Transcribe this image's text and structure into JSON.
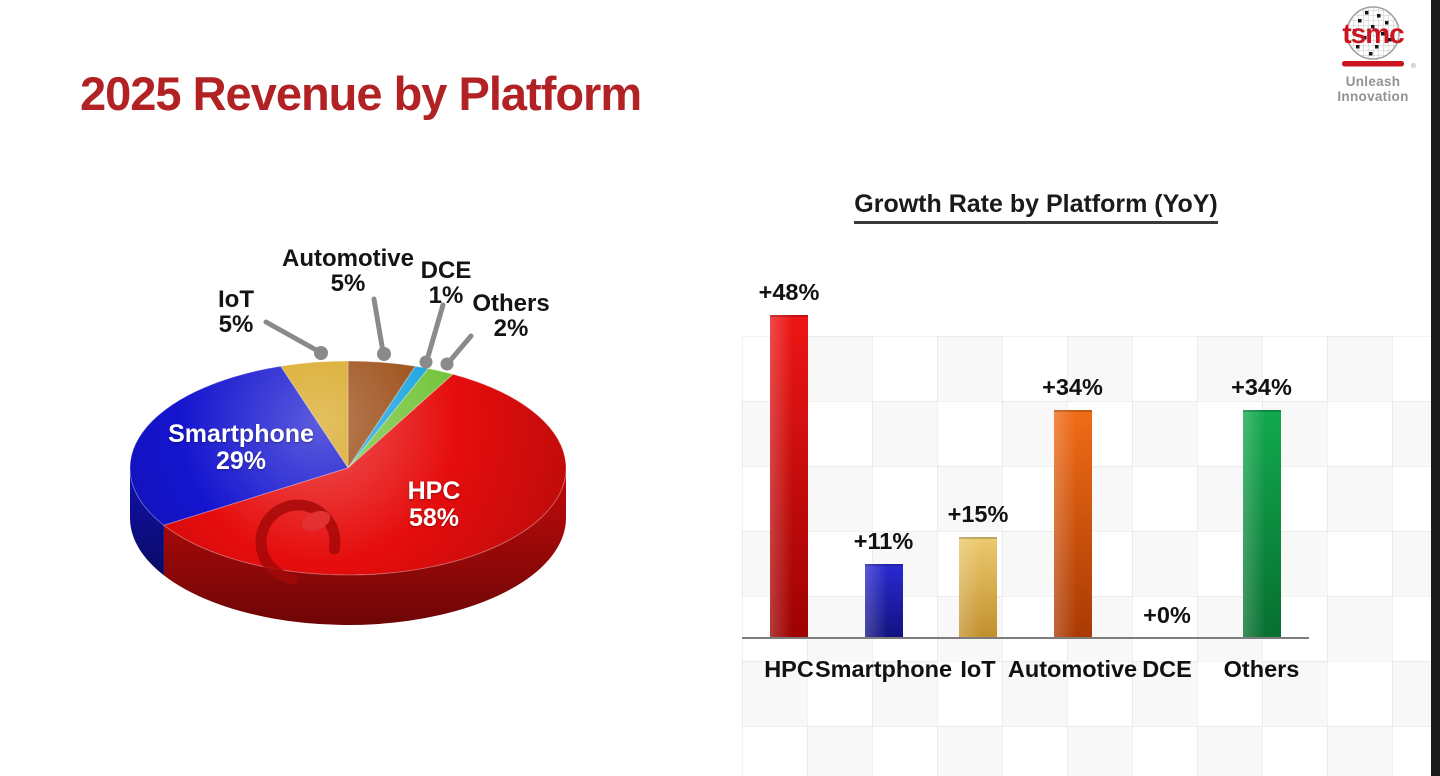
{
  "slide": {
    "title": "2025 Revenue by Platform",
    "title_color": "#b22225",
    "background": "#ffffff"
  },
  "logo": {
    "brand": "tsmc",
    "registered_mark": "®",
    "tagline": "Unleash Innovation",
    "brand_color": "#cc1420",
    "tagline_color": "#929292"
  },
  "chart_data": [
    {
      "type": "pie",
      "style": "3d",
      "title": "2025 Revenue by Platform",
      "unit": "%",
      "labels": [
        "HPC",
        "Smartphone",
        "IoT",
        "Automotive",
        "DCE",
        "Others"
      ],
      "values": [
        58,
        29,
        5,
        5,
        1,
        2
      ],
      "order_clockwise_from_top": [
        "Automotive",
        "DCE",
        "Others",
        "HPC",
        "Smartphone",
        "IoT"
      ],
      "inside_labels": [
        "HPC",
        "Smartphone"
      ],
      "label_format": "{label}\n{value}%",
      "colors": {
        "HPC": "#e60d0d",
        "Smartphone": "#1414cf",
        "IoT": "#d7a51d",
        "Automotive": "#9a4a12",
        "DCE": "#1ba4e0",
        "Others": "#74c43c"
      },
      "leader_line_color": "#8a8a8a"
    },
    {
      "type": "bar",
      "title": "Growth Rate by Platform (YoY)",
      "categories": [
        "HPC",
        "Smartphone",
        "IoT",
        "Automotive",
        "DCE",
        "Others"
      ],
      "values": [
        48,
        11,
        15,
        34,
        0,
        34
      ],
      "value_labels": [
        "+48%",
        "+11%",
        "+15%",
        "+34%",
        "+0%",
        "+34%"
      ],
      "xlabel": "",
      "ylabel": "",
      "ylim": [
        0,
        50
      ],
      "grid": false,
      "axis_color": "#7d7d7d",
      "colors": {
        "HPC": [
          "#ee1616",
          "#9e0202"
        ],
        "Smartphone": [
          "#2a2ad2",
          "#12127e"
        ],
        "IoT": [
          "#ecca6e",
          "#c18f2d"
        ],
        "Automotive": [
          "#f06c16",
          "#aa3a04"
        ],
        "DCE": null,
        "Others": [
          "#12a94e",
          "#076f30"
        ]
      }
    }
  ]
}
